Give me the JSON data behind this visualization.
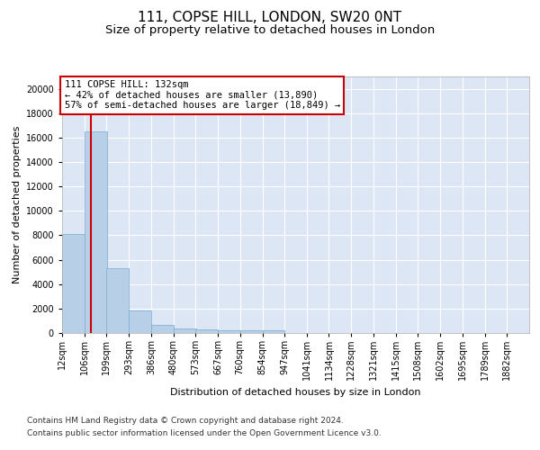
{
  "title": "111, COPSE HILL, LONDON, SW20 0NT",
  "subtitle": "Size of property relative to detached houses in London",
  "xlabel": "Distribution of detached houses by size in London",
  "ylabel": "Number of detached properties",
  "bar_color": "#b8cfe8",
  "bar_edge_color": "#7aaad0",
  "vline_color": "#cc0000",
  "annotation_border_color": "#cc0000",
  "annotation_text": "111 COPSE HILL: 132sqm\n← 42% of detached houses are smaller (13,890)\n57% of semi-detached houses are larger (18,849) →",
  "footer_line1": "Contains HM Land Registry data © Crown copyright and database right 2024.",
  "footer_line2": "Contains public sector information licensed under the Open Government Licence v3.0.",
  "bin_labels": [
    "12sqm",
    "106sqm",
    "199sqm",
    "293sqm",
    "386sqm",
    "480sqm",
    "573sqm",
    "667sqm",
    "760sqm",
    "854sqm",
    "947sqm",
    "1041sqm",
    "1134sqm",
    "1228sqm",
    "1321sqm",
    "1415sqm",
    "1508sqm",
    "1602sqm",
    "1695sqm",
    "1789sqm",
    "1882sqm"
  ],
  "bin_left_edges": [
    12,
    106,
    199,
    293,
    386,
    480,
    573,
    667,
    760,
    854,
    947,
    1041,
    1134,
    1228,
    1321,
    1415,
    1508,
    1602,
    1695,
    1789,
    1882
  ],
  "bar_heights": [
    8100,
    16500,
    5300,
    1850,
    700,
    380,
    290,
    220,
    210,
    190,
    0,
    0,
    0,
    0,
    0,
    0,
    0,
    0,
    0,
    0
  ],
  "ylim_max": 21000,
  "yticks": [
    0,
    2000,
    4000,
    6000,
    8000,
    10000,
    12000,
    14000,
    16000,
    18000,
    20000
  ],
  "plot_bg_color": "#dce6f5",
  "grid_color": "#ffffff",
  "title_fontsize": 11,
  "subtitle_fontsize": 9.5,
  "axis_label_fontsize": 8,
  "tick_fontsize": 7,
  "annotation_fontsize": 7.5,
  "footer_fontsize": 6.5
}
